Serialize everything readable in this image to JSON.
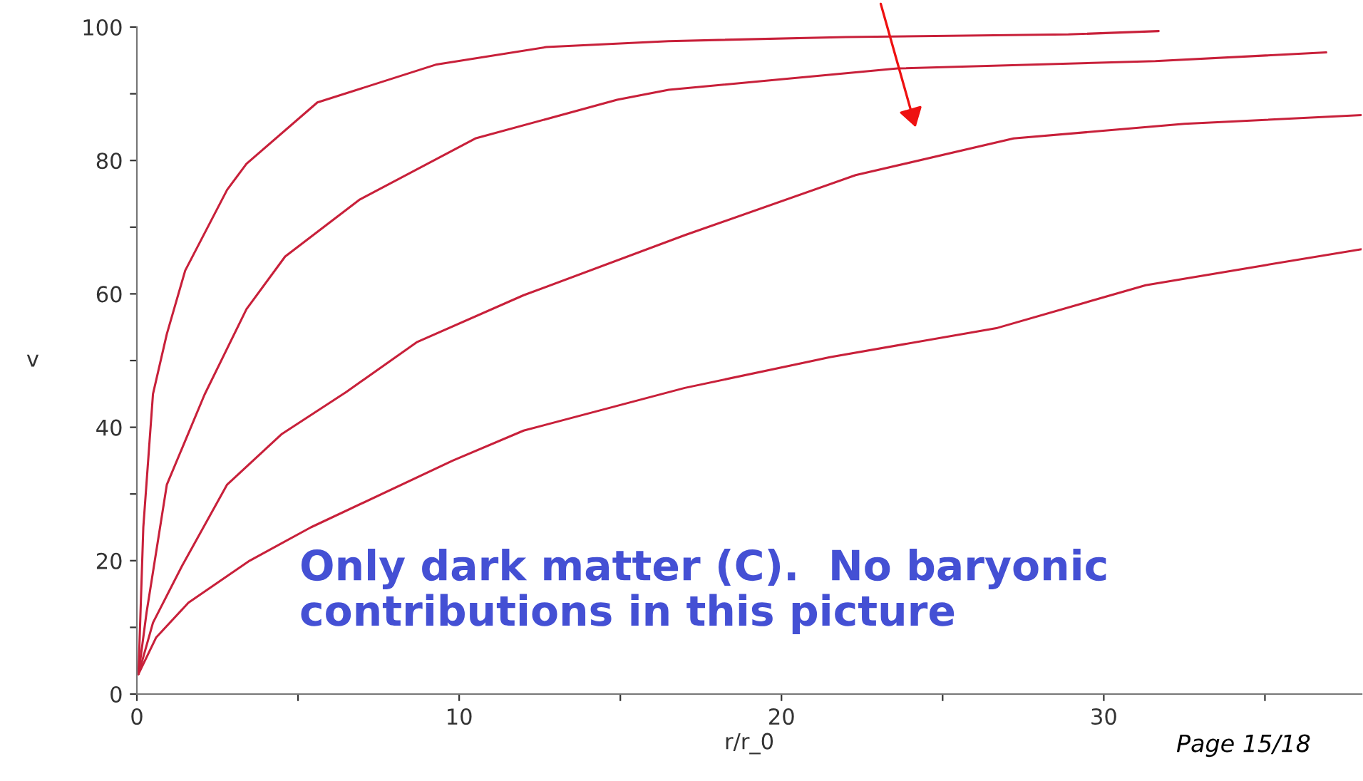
{
  "chart_data": {
    "type": "line",
    "xlabel": "r/r_0",
    "ylabel": "v",
    "xlim": [
      0,
      38
    ],
    "ylim": [
      0,
      100
    ],
    "xticks": [
      0,
      {
        "value": 5,
        "label": null
      },
      10,
      {
        "value": 15,
        "label": null
      },
      20,
      {
        "value": 25,
        "label": null
      },
      30,
      {
        "value": 35,
        "label": null
      }
    ],
    "yticks": [
      0,
      {
        "value": 10,
        "label": null
      },
      20,
      {
        "value": 30,
        "label": null
      },
      40,
      {
        "value": 50,
        "label": null
      },
      60,
      {
        "value": 70,
        "label": null
      },
      80,
      {
        "value": 90,
        "label": null
      },
      100
    ],
    "grid": false,
    "marker": "none",
    "line_style": "solid",
    "series": [
      {
        "color": "#c8203a",
        "x": [
          0.05,
          0.2,
          0.5,
          0.93,
          1.5,
          2.8,
          3.4,
          5.6,
          9.3,
          12.7,
          16.5,
          22.0,
          28.9,
          31.7
        ],
        "values": [
          3,
          25,
          45,
          54,
          63.5,
          75.6,
          79.5,
          88.7,
          94.4,
          97,
          97.9,
          98.5,
          98.9,
          99.4
        ]
      },
      {
        "color": "#c8203a",
        "x": [
          0.05,
          0.3,
          0.93,
          2.1,
          3.4,
          4.6,
          6.9,
          10.5,
          14.9,
          16.5,
          23.6,
          31.6,
          36.9
        ],
        "values": [
          3,
          12.2,
          31.4,
          44.9,
          57.7,
          65.6,
          74.1,
          83.3,
          89.1,
          90.6,
          93.8,
          94.9,
          96.2
        ]
      },
      {
        "color": "#c8203a",
        "x": [
          0.05,
          0.5,
          1.4,
          2.8,
          4.5,
          6.5,
          8.7,
          12,
          17,
          22.3,
          27.2,
          32.5,
          38
        ],
        "values": [
          3,
          10.7,
          19.2,
          31.4,
          39,
          45.3,
          52.8,
          59.8,
          68.8,
          77.8,
          83.3,
          85.5,
          86.8
        ]
      },
      {
        "color": "#c8203a",
        "x": [
          0.05,
          0.6,
          1.6,
          3.5,
          5.4,
          9.8,
          12,
          17,
          21.5,
          26.7,
          31.3,
          35,
          38
        ],
        "values": [
          3,
          8.5,
          13.7,
          20,
          25,
          35,
          39.5,
          45.9,
          50.5,
          54.9,
          61.3,
          64.3,
          66.7
        ]
      }
    ],
    "annotations": [
      "Only dark matter (C).  No baryonic\ncontributions in this picture",
      "Page 15/18"
    ]
  }
}
